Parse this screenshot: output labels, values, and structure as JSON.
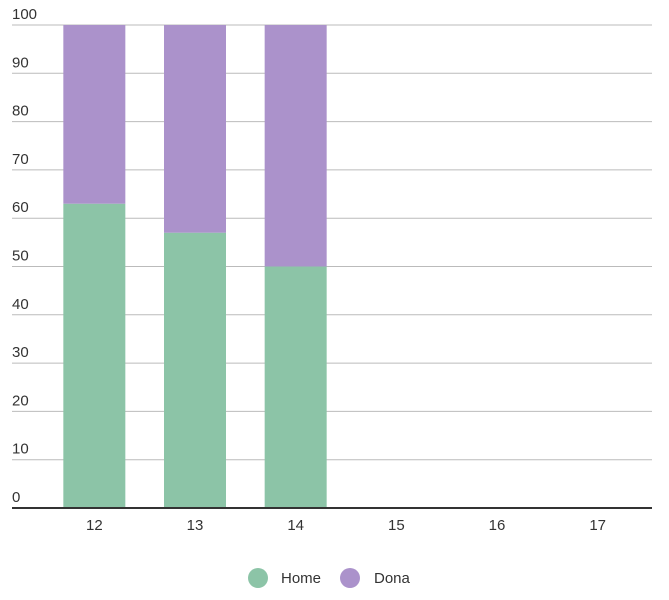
{
  "chart_data": {
    "type": "stacked-bar",
    "categories": [
      "12",
      "13",
      "14",
      "15",
      "16",
      "17"
    ],
    "series": [
      {
        "name": "Home",
        "color": "#8cc4a7",
        "values": [
          63,
          57,
          50,
          null,
          null,
          null
        ]
      },
      {
        "name": "Dona",
        "color": "#ab92cb",
        "values": [
          37,
          43,
          50,
          null,
          null,
          null
        ]
      }
    ],
    "ylim": [
      0,
      100
    ],
    "yticks": [
      0,
      10,
      20,
      30,
      40,
      50,
      60,
      70,
      80,
      90,
      100
    ],
    "grid": true
  }
}
